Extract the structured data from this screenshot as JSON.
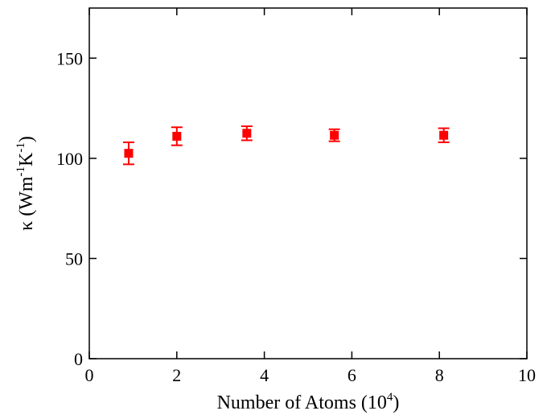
{
  "chart_data": {
    "type": "scatter",
    "xlabel": "Number of Atoms (10",
    "xlabel_sup": "4",
    "xlabel_end": ")",
    "ylabel": "κ (Wm",
    "ylabel_sup1": "-1",
    "ylabel_mid": "K",
    "ylabel_sup2": "-1",
    "ylabel_end": ")",
    "xlim": [
      0,
      10
    ],
    "ylim": [
      0,
      175
    ],
    "xticks": [
      0,
      2,
      4,
      6,
      8,
      10
    ],
    "xtick_labels": [
      "0",
      "2",
      "4",
      "6",
      "8",
      "10"
    ],
    "yticks": [
      0,
      50,
      100,
      150
    ],
    "ytick_labels": [
      "0",
      "50",
      "100",
      "150"
    ],
    "grid": false,
    "marker_color": "#ff0000",
    "series": [
      {
        "x": [
          0.9,
          2.0,
          3.6,
          5.6,
          8.1
        ],
        "y": [
          102.5,
          111.0,
          112.5,
          111.5,
          111.5
        ],
        "err": [
          5.5,
          4.5,
          3.5,
          3.0,
          3.5
        ]
      }
    ]
  }
}
